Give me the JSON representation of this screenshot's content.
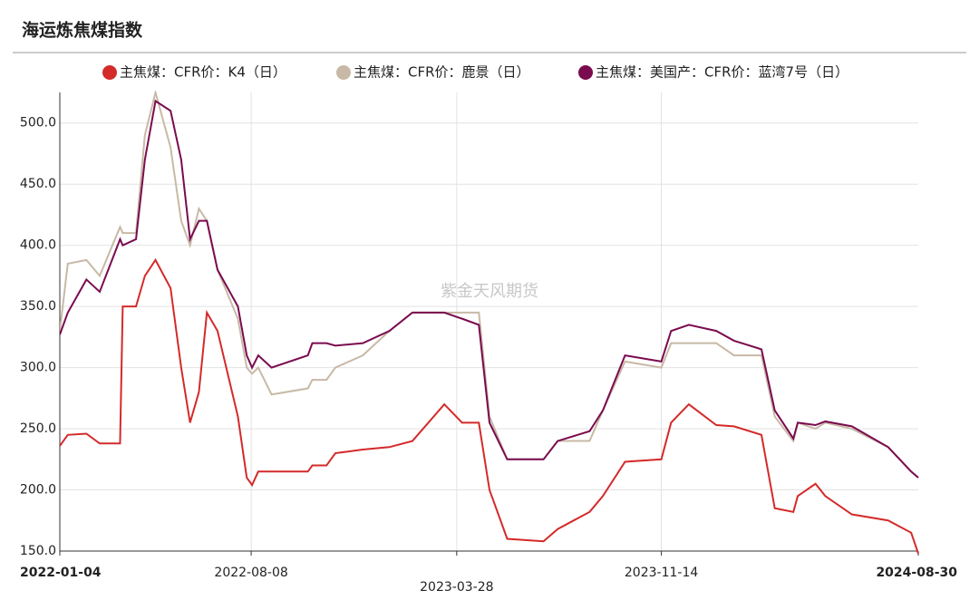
{
  "chart_data": {
    "type": "line",
    "title": "海运炼焦煤指数",
    "watermark": "紫金天风期货",
    "x": [
      "2022-01-04",
      "2022-01-13",
      "2022-02-03",
      "2022-02-18",
      "2022-03-13",
      "2022-03-16",
      "2022-03-31",
      "2022-04-10",
      "2022-04-22",
      "2022-05-09",
      "2022-05-21",
      "2022-05-31",
      "2022-06-10",
      "2022-06-19",
      "2022-07-01",
      "2022-07-24",
      "2022-08-03",
      "2022-08-09",
      "2022-08-16",
      "2022-08-31",
      "2022-10-11",
      "2022-10-16",
      "2022-11-01",
      "2022-11-11",
      "2022-12-12",
      "2023-01-11",
      "2023-02-06",
      "2023-03-14",
      "2023-04-03",
      "2023-04-22",
      "2023-05-04",
      "2023-05-24",
      "2023-07-04",
      "2023-07-20",
      "2023-08-25",
      "2023-09-09",
      "2023-10-04",
      "2023-11-14",
      "2023-11-25",
      "2023-12-15",
      "2024-01-15",
      "2024-02-04",
      "2024-03-06",
      "2024-03-21",
      "2024-04-11",
      "2024-04-16",
      "2024-05-06",
      "2024-05-17",
      "2024-06-16",
      "2024-07-27",
      "2024-08-22",
      "2024-08-30"
    ],
    "series": [
      {
        "name": "主焦煤：CFR价：K4（日）",
        "color": "#d42a2a",
        "values": [
          236,
          245,
          246,
          238,
          238,
          350,
          350,
          375,
          388,
          365,
          300,
          255,
          280,
          345,
          330,
          260,
          210,
          204,
          215,
          215,
          215,
          220,
          220,
          230,
          233,
          235,
          240,
          270,
          255,
          255,
          200,
          160,
          158,
          168,
          182,
          195,
          223,
          225,
          255,
          270,
          253,
          252,
          245,
          185,
          182,
          195,
          205,
          195,
          180,
          175,
          165,
          148
        ]
      },
      {
        "name": "主焦煤：CFR价：鹿景（日）",
        "color": "#c8b9a6",
        "values": [
          330,
          385,
          388,
          375,
          415,
          410,
          410,
          490,
          525,
          480,
          420,
          400,
          430,
          420,
          380,
          340,
          300,
          295,
          300,
          278,
          283,
          290,
          290,
          300,
          310,
          330,
          345,
          345,
          345,
          345,
          260,
          225,
          225,
          240,
          240,
          265,
          305,
          300,
          320,
          320,
          320,
          310,
          310,
          260,
          240,
          255,
          250,
          255,
          250,
          235,
          215,
          210
        ]
      },
      {
        "name": "主焦煤：美国产：CFR价：蓝湾7号（日）",
        "color": "#7a0b4f",
        "values": [
          327,
          345,
          372,
          362,
          405,
          400,
          405,
          470,
          518,
          510,
          470,
          405,
          420,
          420,
          380,
          350,
          310,
          300,
          310,
          300,
          310,
          320,
          320,
          318,
          320,
          330,
          345,
          345,
          340,
          335,
          255,
          225,
          225,
          240,
          248,
          265,
          310,
          305,
          330,
          335,
          330,
          322,
          315,
          265,
          242,
          255,
          253,
          256,
          252,
          235,
          215,
          210
        ]
      }
    ],
    "xlim": [
      "2022-01-04",
      "2024-08-30"
    ],
    "xticks": [
      "2022-01-04",
      "2022-08-08",
      "2023-03-28",
      "2023-11-14",
      "2024-08-30"
    ],
    "ylim": [
      150,
      525
    ],
    "yticks": [
      {
        "value": 150,
        "label": "150.0"
      },
      {
        "value": 200,
        "label": "200.0"
      },
      {
        "value": 250,
        "label": "250.0"
      },
      {
        "value": 300,
        "label": "300.0"
      },
      {
        "value": 350,
        "label": "350.0"
      },
      {
        "value": 400,
        "label": "400.0"
      },
      {
        "value": 450,
        "label": "450.0"
      },
      {
        "value": 500,
        "label": "500.0"
      }
    ],
    "grid": true
  }
}
